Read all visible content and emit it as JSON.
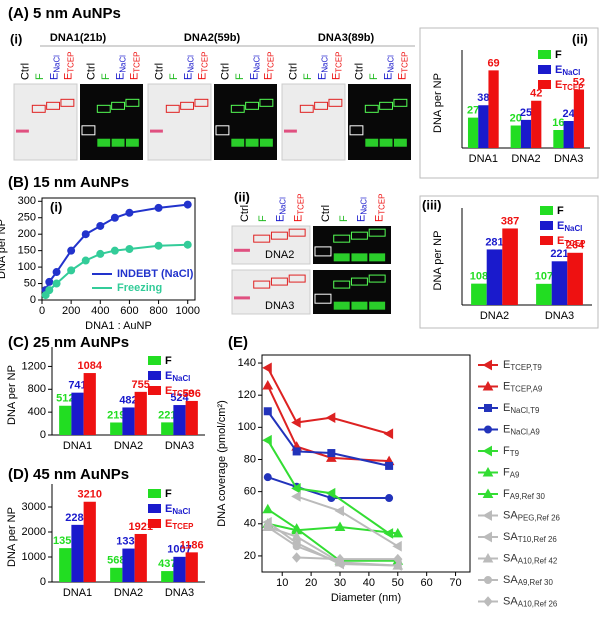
{
  "headings": [
    "(A) 5 nm AuNPs",
    "(B) 15 nm AuNPs",
    "(C) 25 nm AuNPs",
    "(D) 45 nm AuNPs",
    "(E)"
  ],
  "gels": {
    "lanes": [
      {
        "name": "Ctrl",
        "color": "#000000"
      },
      {
        "name": "F",
        "color": "#22bb22"
      },
      {
        "name": "E",
        "sub": "NaCl",
        "color": "#1a1acc"
      },
      {
        "name": "E",
        "sub": "TCEP",
        "color": "#ee1111"
      }
    ],
    "A": {
      "panel_label": "(i)",
      "titles": [
        "DNA1(21b)",
        "DNA2(59b)",
        "DNA3(89b)"
      ]
    },
    "B": {
      "panel_label": "(ii)",
      "names": [
        "DNA2",
        "DNA3"
      ]
    }
  },
  "chart_data": [
    {
      "type": "bar",
      "panel_label": "(ii)",
      "y_label": "DNA per NP",
      "categories": [
        "DNA1",
        "DNA2",
        "DNA3"
      ],
      "ylim": [
        0,
        80
      ],
      "series": [
        {
          "name": "F",
          "color": "#22dd22",
          "values": [
            27,
            20,
            16
          ]
        },
        {
          "name": "E",
          "sub": "NaCl",
          "color": "#1a1acc",
          "values": [
            38,
            25,
            24
          ]
        },
        {
          "name": "E",
          "sub": "TCEP",
          "color": "#ee1111",
          "values": [
            69,
            42,
            52
          ]
        }
      ]
    },
    {
      "type": "line",
      "panel_label": "(i)",
      "x_label": "DNA1 : AuNP",
      "y_label": "DNA per NP",
      "x": [
        25,
        50,
        100,
        200,
        300,
        400,
        500,
        600,
        800,
        1000
      ],
      "xlim": [
        0,
        1050
      ],
      "xticks": [
        0,
        200,
        400,
        600,
        800,
        1000
      ],
      "ylim": [
        0,
        310
      ],
      "yticks": [
        0,
        50,
        100,
        150,
        200,
        250,
        300
      ],
      "series": [
        {
          "name": "INDEBT (NaCl)",
          "color": "#2233cc",
          "marker": "circle",
          "values": [
            30,
            55,
            85,
            150,
            200,
            225,
            250,
            265,
            280,
            290
          ]
        },
        {
          "name": "Freezing",
          "color": "#33cc99",
          "marker": "circle",
          "values": [
            15,
            30,
            50,
            90,
            120,
            140,
            150,
            155,
            165,
            168
          ]
        }
      ]
    },
    {
      "type": "bar",
      "panel_label": "(iii)",
      "y_label": "DNA per NP",
      "categories": [
        "DNA2",
        "DNA3"
      ],
      "ylim": [
        0,
        450
      ],
      "series": [
        {
          "name": "F",
          "color": "#22dd22",
          "values": [
            108,
            107
          ]
        },
        {
          "name": "E",
          "sub": "NaCl",
          "color": "#1a1acc",
          "values": [
            281,
            221
          ]
        },
        {
          "name": "E",
          "sub": "TCEP",
          "color": "#ee1111",
          "values": [
            387,
            264
          ]
        }
      ]
    },
    {
      "type": "bar",
      "y_label": "DNA per NP",
      "categories": [
        "DNA1",
        "DNA2",
        "DNA3"
      ],
      "ylim": [
        0,
        1400
      ],
      "yticks": [
        0,
        400,
        800,
        1200
      ],
      "series": [
        {
          "name": "F",
          "color": "#22dd22",
          "values": [
            512,
            219,
            221
          ]
        },
        {
          "name": "E",
          "sub": "NaCl",
          "color": "#1a1acc",
          "values": [
            741,
            482,
            524
          ]
        },
        {
          "name": "E",
          "sub": "TCEP",
          "color": "#ee1111",
          "values": [
            1084,
            755,
            596
          ]
        }
      ]
    },
    {
      "type": "bar",
      "y_label": "DNA per NP",
      "categories": [
        "DNA1",
        "DNA2",
        "DNA3"
      ],
      "ylim": [
        0,
        3600
      ],
      "yticks": [
        0,
        1000,
        2000,
        3000
      ],
      "series": [
        {
          "name": "F",
          "color": "#22dd22",
          "values": [
            1354,
            568,
            437
          ]
        },
        {
          "name": "E",
          "sub": "NaCl",
          "color": "#1a1acc",
          "values": [
            2286,
            1337,
            1007
          ]
        },
        {
          "name": "E",
          "sub": "TCEP",
          "color": "#ee1111",
          "values": [
            3210,
            1921,
            1186
          ]
        }
      ]
    },
    {
      "type": "line",
      "x_label": "Diameter (nm)",
      "y_label": "DNA coverage (pmol/cm²)",
      "xlim": [
        3,
        75
      ],
      "xticks": [
        10,
        20,
        30,
        40,
        50,
        60,
        70
      ],
      "ylim": [
        10,
        145
      ],
      "yticks": [
        20,
        40,
        60,
        80,
        100,
        120,
        140
      ],
      "series": [
        {
          "name": "E",
          "sub": "TCEP,T9",
          "color": "#dd2222",
          "marker": "triangle-left",
          "x": [
            5,
            15,
            27,
            47
          ],
          "values": [
            137,
            103,
            106,
            96
          ]
        },
        {
          "name": "E",
          "sub": "TCEP,A9",
          "color": "#dd2222",
          "marker": "triangle",
          "x": [
            5,
            15,
            27,
            47
          ],
          "values": [
            126,
            88,
            81,
            79
          ]
        },
        {
          "name": "E",
          "sub": "NaCl,T9",
          "color": "#2233bb",
          "marker": "square",
          "x": [
            5,
            15,
            27,
            47
          ],
          "values": [
            110,
            85,
            84,
            76
          ]
        },
        {
          "name": "E",
          "sub": "NaCl,A9",
          "color": "#2233bb",
          "marker": "circle",
          "x": [
            5,
            15,
            27,
            47
          ],
          "values": [
            69,
            63,
            56,
            56
          ]
        },
        {
          "name": "F",
          "sub": "T9",
          "color": "#33dd33",
          "marker": "triangle-left",
          "x": [
            5,
            15,
            27,
            47
          ],
          "values": [
            92,
            62,
            59,
            34
          ]
        },
        {
          "name": "F",
          "sub": "A9",
          "color": "#33dd33",
          "marker": "triangle",
          "x": [
            5,
            15,
            30,
            50
          ],
          "values": [
            49,
            37,
            17,
            17
          ]
        },
        {
          "name": "F",
          "sub": "A9,Ref 30",
          "color": "#33dd33",
          "marker": "triangle",
          "x": [
            5,
            15,
            30,
            50
          ],
          "values": [
            40,
            36,
            38,
            34
          ]
        },
        {
          "name": "SA",
          "sub": "PEG,Ref 26",
          "color": "#bbbbbb",
          "marker": "triangle-left",
          "x": [
            15,
            30,
            50
          ],
          "values": [
            57,
            48,
            26
          ]
        },
        {
          "name": "SA",
          "sub": "T10,Ref 26",
          "color": "#bbbbbb",
          "marker": "triangle-left",
          "x": [
            5,
            15,
            30,
            50
          ],
          "values": [
            41,
            28,
            15,
            14
          ]
        },
        {
          "name": "SA",
          "sub": "A10,Ref 42",
          "color": "#bbbbbb",
          "marker": "triangle",
          "x": [
            5,
            15,
            30,
            50
          ],
          "values": [
            38,
            32,
            16,
            14
          ]
        },
        {
          "name": "SA",
          "sub": "A9,Ref 30",
          "color": "#bbbbbb",
          "marker": "circle",
          "x": [
            5,
            15,
            30
          ],
          "values": [
            38,
            26,
            16
          ]
        },
        {
          "name": "SA",
          "sub": "A10,Ref 26",
          "color": "#bbbbbb",
          "marker": "diamond",
          "x": [
            15,
            30,
            50
          ],
          "values": [
            19,
            18,
            18
          ]
        }
      ]
    }
  ]
}
